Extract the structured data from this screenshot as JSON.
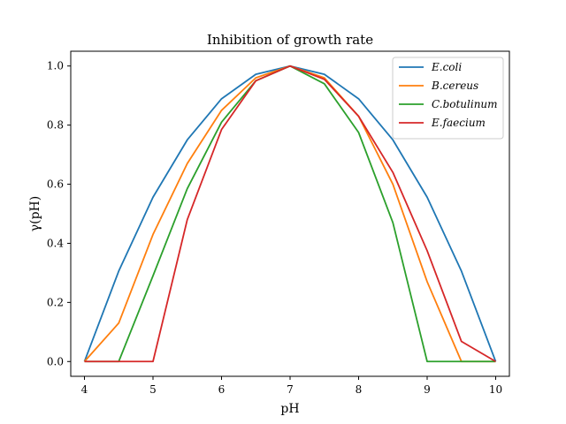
{
  "chart_data": {
    "type": "line",
    "title": "Inhibition of growth rate",
    "xlabel": "pH",
    "ylabel": "γ(pH)",
    "xlim": [
      3.8,
      10.2
    ],
    "ylim": [
      -0.05,
      1.05
    ],
    "x_ticks": [
      4,
      5,
      6,
      7,
      8,
      9,
      10
    ],
    "y_ticks": [
      0.0,
      0.2,
      0.4,
      0.6,
      0.8,
      1.0
    ],
    "x_tick_labels": [
      "4",
      "5",
      "6",
      "7",
      "8",
      "9",
      "10"
    ],
    "y_tick_labels": [
      "0.0",
      "0.2",
      "0.4",
      "0.6",
      "0.8",
      "1.0"
    ],
    "grid": false,
    "legend_position": "top-right",
    "x": [
      4,
      4.5,
      5,
      5.5,
      6,
      6.5,
      7,
      7.5,
      8,
      8.5,
      9,
      9.5,
      10
    ],
    "series": [
      {
        "name": "E.coli",
        "color": "#1f77b4",
        "values": [
          0.0,
          0.306,
          0.556,
          0.75,
          0.889,
          0.972,
          1.0,
          0.972,
          0.889,
          0.75,
          0.556,
          0.306,
          0.0
        ]
      },
      {
        "name": "B.cereus",
        "color": "#ff7f0e",
        "values": [
          0.0,
          0.13,
          0.43,
          0.67,
          0.85,
          0.96,
          1.0,
          0.96,
          0.83,
          0.6,
          0.27,
          0.0,
          0.0
        ]
      },
      {
        "name": "C.botulinum",
        "color": "#2ca02c",
        "values": [
          0.0,
          0.0,
          0.29,
          0.585,
          0.81,
          0.95,
          1.0,
          0.94,
          0.775,
          0.47,
          0.0,
          0.0,
          0.0
        ]
      },
      {
        "name": "E.faecium",
        "color": "#d62728",
        "values": [
          0.0,
          0.0,
          0.0,
          0.48,
          0.785,
          0.95,
          1.0,
          0.955,
          0.83,
          0.64,
          0.375,
          0.068,
          0.0
        ]
      }
    ]
  }
}
